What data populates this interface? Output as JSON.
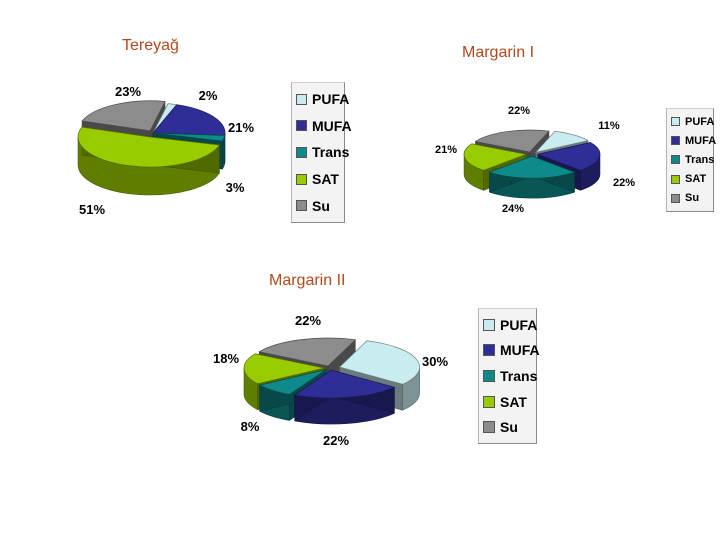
{
  "colors": {
    "PUFA": "#c9ecf0",
    "MUFA": "#2e2e96",
    "Trans": "#0f8a8a",
    "SAT": "#99cc00",
    "Su": "#8c8c8c",
    "title": "#b04a1e"
  },
  "legend": [
    "PUFA",
    "MUFA",
    "Trans",
    "SAT",
    "Su"
  ],
  "chart_data": [
    {
      "type": "pie",
      "title": "Tereyağ",
      "categories": [
        "PUFA",
        "MUFA",
        "Trans",
        "SAT",
        "Su"
      ],
      "values": [
        2,
        21,
        3,
        51,
        23
      ],
      "labels": [
        "2%",
        "21%",
        "3%",
        "51%",
        "23%"
      ],
      "legend_placement": "right"
    },
    {
      "type": "pie",
      "title": "Margarin I",
      "categories": [
        "PUFA",
        "MUFA",
        "Trans",
        "SAT",
        "Su"
      ],
      "values": [
        11,
        22,
        24,
        21,
        22
      ],
      "labels": [
        "11%",
        "22%",
        "24%",
        "21%",
        "22%"
      ],
      "legend_placement": "right"
    },
    {
      "type": "pie",
      "title": "Margarin II",
      "categories": [
        "PUFA",
        "MUFA",
        "Trans",
        "SAT",
        "Su"
      ],
      "values": [
        30,
        22,
        8,
        18,
        22
      ],
      "labels": [
        "30%",
        "22%",
        "8%",
        "18%",
        "22%"
      ],
      "legend_placement": "right"
    }
  ]
}
